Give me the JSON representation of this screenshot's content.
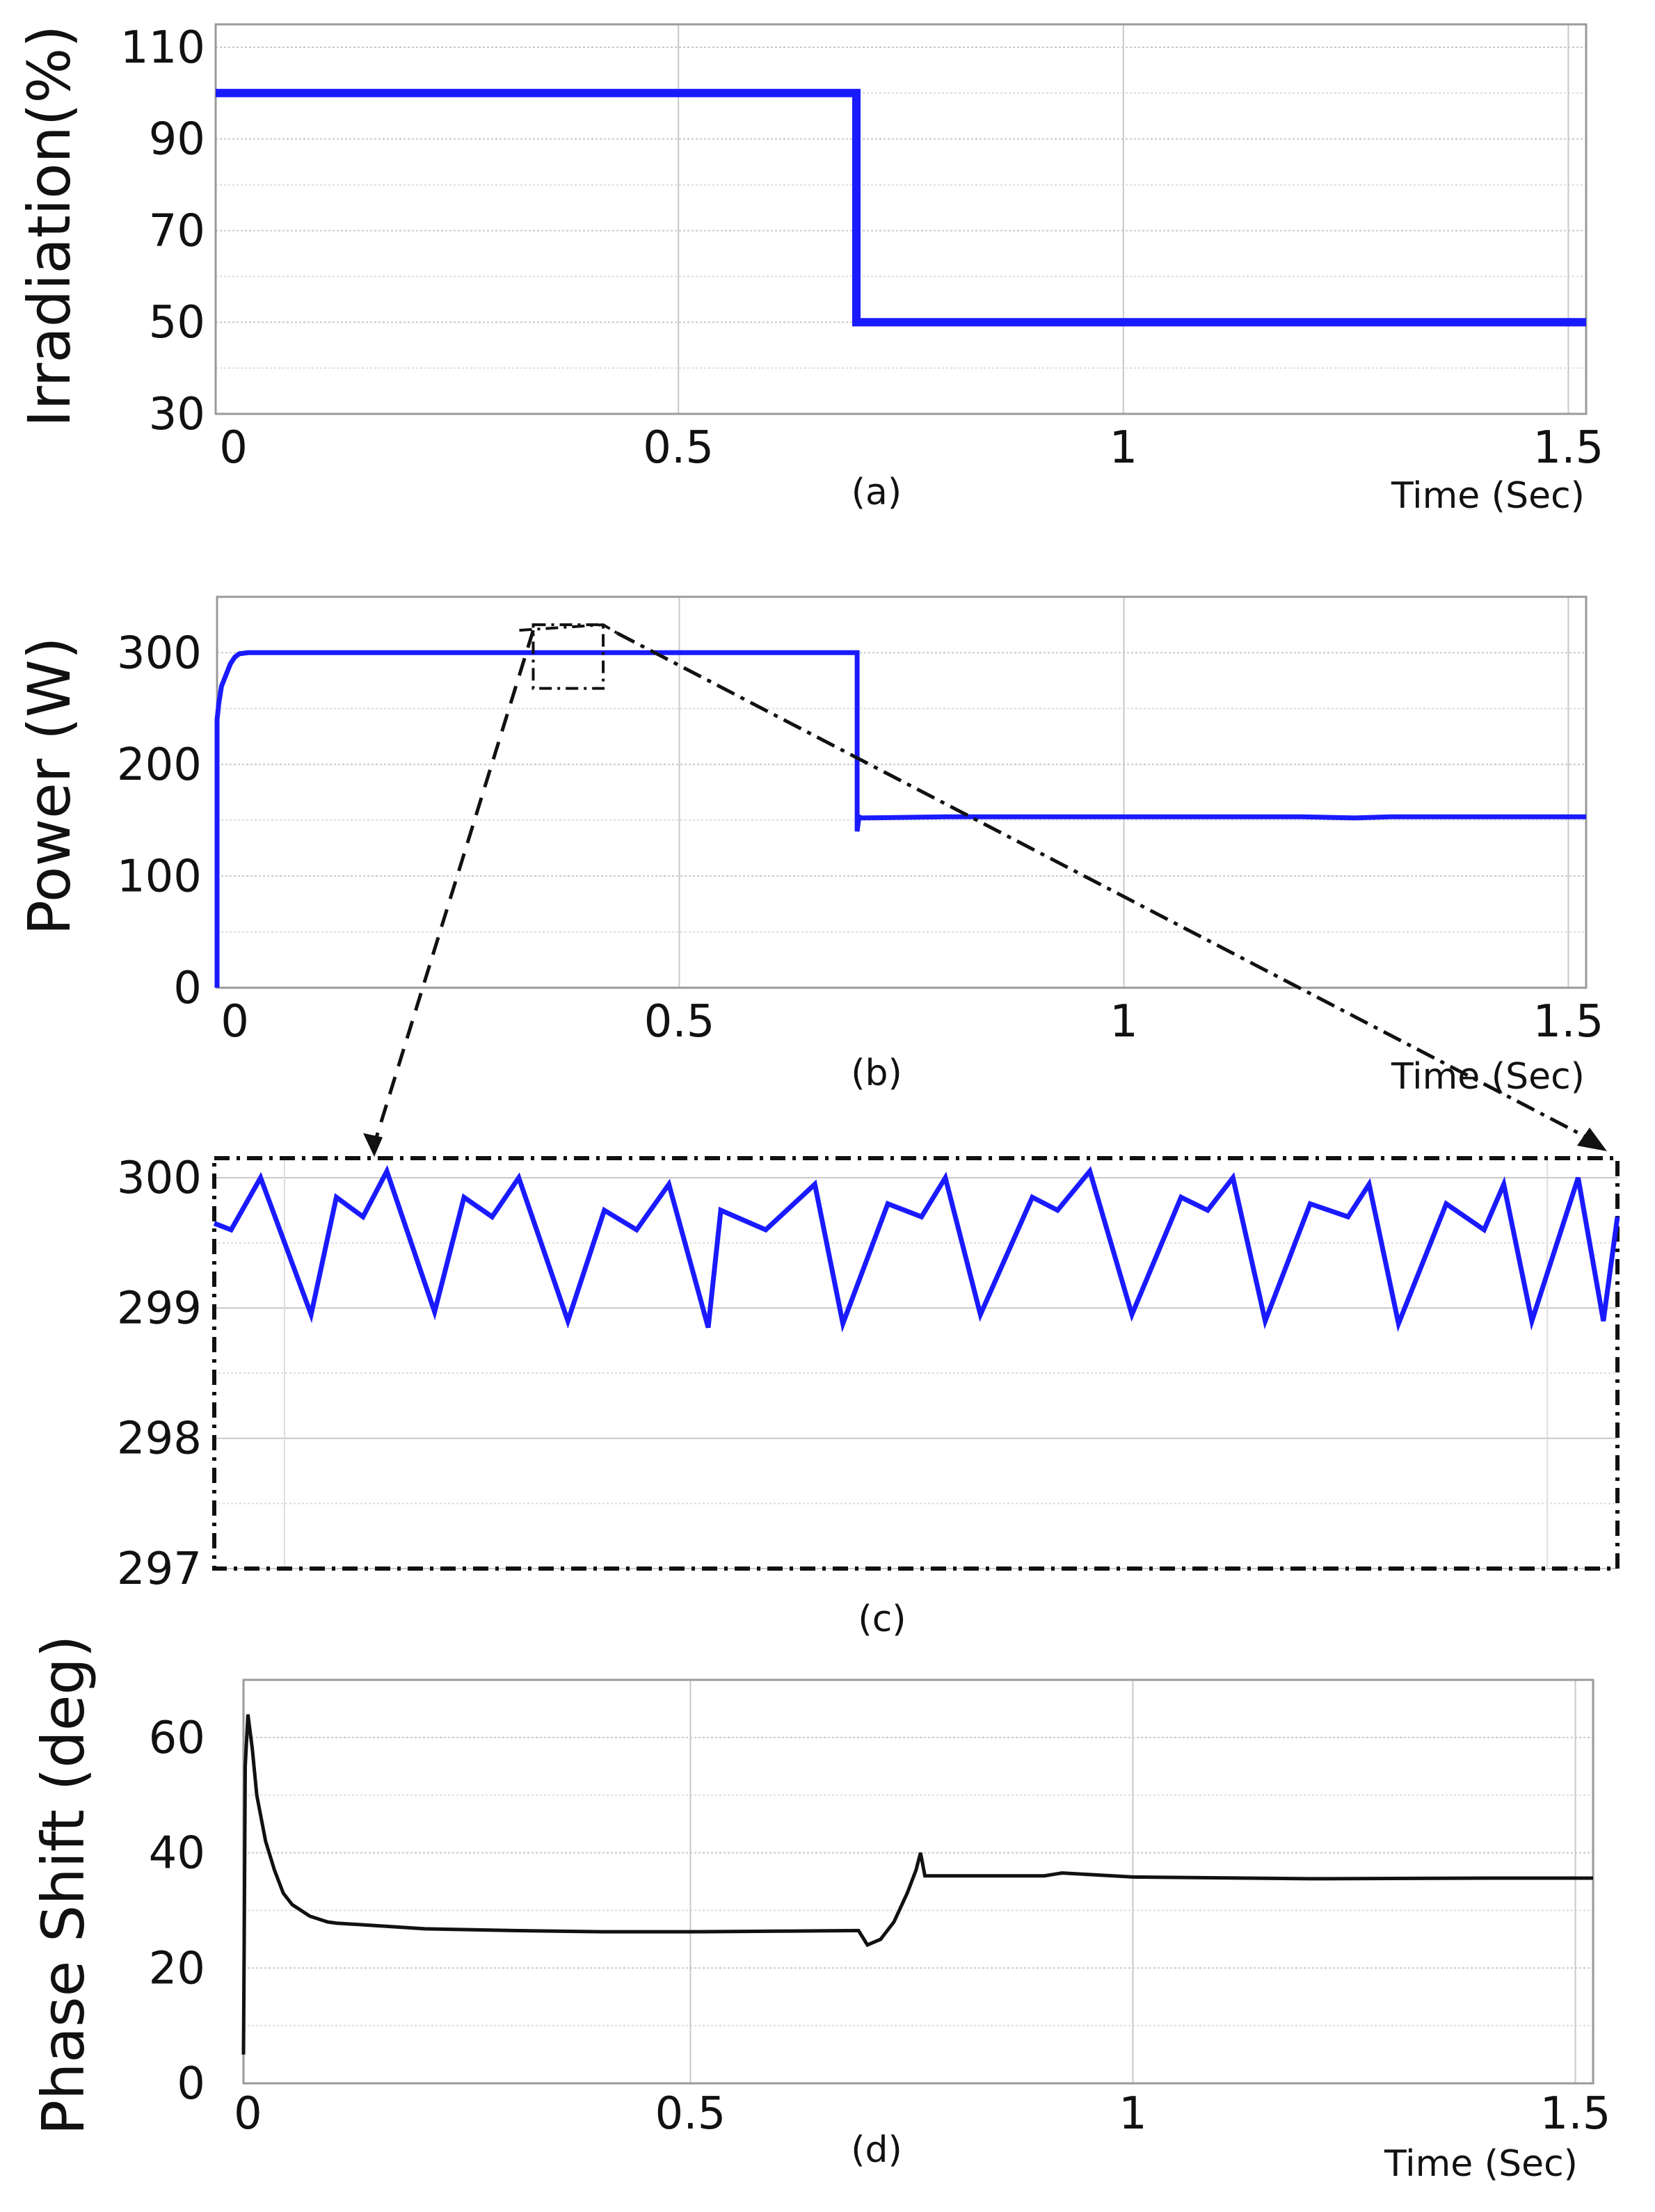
{
  "figure": {
    "colors": {
      "series_blue": "#1a1aff",
      "series_black": "#111111",
      "grid": "#c8c8c8",
      "frame": "#9a9a9a"
    }
  },
  "chart_data": [
    {
      "id": "a",
      "type": "line",
      "panel_label": "(a)",
      "ylabel": "Irradiation(%)",
      "xlabel": "Time (Sec)",
      "xlim": [
        -0.02,
        1.52
      ],
      "ylim": [
        30,
        115
      ],
      "xticks": [
        0,
        0.5,
        1,
        1.5
      ],
      "xtick_labels": [
        "0",
        "0.5",
        "1",
        "1.5"
      ],
      "yticks": [
        30,
        50,
        70,
        90,
        110
      ],
      "ytick_labels": [
        "30",
        "50",
        "70",
        "90",
        "110"
      ],
      "grid": true,
      "series": [
        {
          "color": "#1a1aff",
          "x": [
            -0.02,
            0.7,
            0.7,
            1.52
          ],
          "y": [
            100,
            100,
            50,
            50
          ]
        }
      ]
    },
    {
      "id": "b",
      "type": "line",
      "panel_label": "(b)",
      "ylabel": "Power (W)",
      "xlabel": "Time (Sec)",
      "xlim": [
        -0.02,
        1.52
      ],
      "ylim": [
        0,
        350
      ],
      "xticks": [
        0,
        0.5,
        1,
        1.5
      ],
      "xtick_labels": [
        "0",
        "0.5",
        "1",
        "1.5"
      ],
      "yticks": [
        0,
        100,
        200,
        300
      ],
      "ytick_labels": [
        "0",
        "100",
        "200",
        "300"
      ],
      "grid": true,
      "series": [
        {
          "color": "#1a1aff",
          "x": [
            -0.02,
            -0.02,
            -0.018,
            -0.015,
            -0.01,
            -0.005,
            0.0,
            0.005,
            0.015,
            0.1,
            0.2,
            0.3,
            0.4,
            0.5,
            0.6,
            0.7,
            0.7,
            0.702,
            0.705,
            0.8,
            1.0,
            1.2,
            1.26,
            1.3,
            1.52
          ],
          "y": [
            0,
            240,
            255,
            270,
            280,
            290,
            296,
            299,
            300,
            300,
            300,
            300,
            300,
            300,
            300,
            300,
            140,
            153,
            152,
            153,
            153,
            153,
            152,
            153,
            153
          ]
        }
      ]
    },
    {
      "id": "c",
      "type": "line",
      "panel_label": "(c)",
      "ylabel": "",
      "xlabel": "",
      "xlim": [
        0,
        1
      ],
      "ylim": [
        297,
        300.15
      ],
      "xticks": [],
      "xtick_labels": [],
      "yticks": [
        297,
        298,
        299,
        300
      ],
      "ytick_labels": [
        "297",
        "298",
        "299",
        "300"
      ],
      "grid": true,
      "series": [
        {
          "color": "#1a1aff",
          "x": [
            0.0,
            0.012,
            0.033,
            0.069,
            0.087,
            0.106,
            0.123,
            0.157,
            0.178,
            0.198,
            0.217,
            0.252,
            0.278,
            0.301,
            0.324,
            0.352,
            0.361,
            0.393,
            0.428,
            0.448,
            0.48,
            0.504,
            0.521,
            0.546,
            0.583,
            0.601,
            0.624,
            0.654,
            0.689,
            0.708,
            0.726,
            0.749,
            0.781,
            0.808,
            0.823,
            0.844,
            0.878,
            0.905,
            0.919,
            0.939,
            0.972,
            0.99,
            1.0
          ],
          "y": [
            299.65,
            299.6,
            300.0,
            298.95,
            299.85,
            299.7,
            300.05,
            298.97,
            299.85,
            299.7,
            300.0,
            298.9,
            299.75,
            299.6,
            299.95,
            298.85,
            299.75,
            299.6,
            299.95,
            298.88,
            299.8,
            299.7,
            300.0,
            298.95,
            299.85,
            299.75,
            300.05,
            298.95,
            299.85,
            299.75,
            300.0,
            298.9,
            299.8,
            299.7,
            299.95,
            298.88,
            299.8,
            299.6,
            299.95,
            298.9,
            300.0,
            298.9,
            299.7
          ]
        }
      ]
    },
    {
      "id": "d",
      "type": "line",
      "panel_label": "(d)",
      "ylabel": "Phase Shift (deg)",
      "xlabel": "Time (Sec)",
      "xlim": [
        -0.005,
        1.52
      ],
      "ylim": [
        0,
        70
      ],
      "xticks": [
        0,
        0.5,
        1,
        1.5
      ],
      "xtick_labels": [
        "0",
        "0.5",
        "1",
        "1.5"
      ],
      "yticks": [
        0,
        20,
        40,
        60
      ],
      "ytick_labels": [
        "0",
        "20",
        "40",
        "60"
      ],
      "grid": true,
      "series": [
        {
          "color": "#111111",
          "x": [
            -0.005,
            -0.004,
            -0.003,
            0.0,
            0.005,
            0.01,
            0.02,
            0.03,
            0.04,
            0.05,
            0.06,
            0.07,
            0.08,
            0.09,
            0.1,
            0.15,
            0.2,
            0.3,
            0.4,
            0.5,
            0.6,
            0.69,
            0.7,
            0.715,
            0.73,
            0.745,
            0.755,
            0.76,
            0.765,
            0.8,
            0.9,
            0.92,
            1.0,
            1.2,
            1.4,
            1.52
          ],
          "y": [
            5,
            30,
            55,
            64,
            58,
            50,
            42,
            37,
            33,
            31,
            30,
            29,
            28.5,
            28,
            27.8,
            27.3,
            26.8,
            26.5,
            26.3,
            26.3,
            26.4,
            26.5,
            24,
            25,
            28,
            33,
            37,
            40,
            36,
            36,
            36,
            36.5,
            35.8,
            35.5,
            35.6,
            35.6
          ]
        }
      ]
    }
  ],
  "zoom": {
    "source_panel": "b",
    "target_panel": "c",
    "source_x": [
      0.32,
      0.43
    ],
    "source_y": [
      268,
      325
    ]
  }
}
